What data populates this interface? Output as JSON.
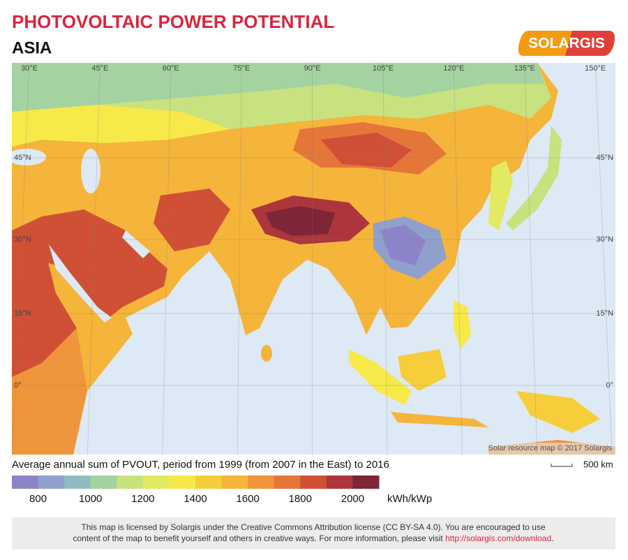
{
  "header": {
    "title": "PHOTOVOLTAIC POWER POTENTIAL",
    "subtitle": "ASIA",
    "logo": "SOLARGIS"
  },
  "map": {
    "longitude_labels": [
      "30°E",
      "45°E",
      "60°E",
      "75°E",
      "90°E",
      "105°E",
      "120°E",
      "135°E",
      "150°E"
    ],
    "latitude_labels": [
      "45°N",
      "30°N",
      "15°N",
      "0°"
    ],
    "credit": "Solar resource map © 2017 Solargis",
    "scale_label": "500 km"
  },
  "legend": {
    "caption": "Average annual sum of PVOUT, period from 1999 (from 2007 in the East) to 2016",
    "range": [
      700,
      2100
    ],
    "ticks": [
      800,
      1000,
      1200,
      1400,
      1600,
      1800,
      2000
    ],
    "colors": [
      "#8c84c9",
      "#8fa0cc",
      "#8fbcc1",
      "#a4d3a1",
      "#c7e27e",
      "#e2ea62",
      "#f7e94a",
      "#f6ce3c",
      "#f5b43a",
      "#ef953b",
      "#e57639",
      "#cf5035",
      "#ac363c",
      "#7e2538"
    ],
    "unit": "kWh/kWp"
  },
  "footer": {
    "lines": [
      "This map is licensed by Solargis under the Creative Commons Attribution license (CC BY-SA 4.0). You are encouraged to use",
      "content of the map to benefit yourself and others in creative ways. For more information, please visit"
    ],
    "link": "http://solargis.com/download",
    "end": "."
  }
}
